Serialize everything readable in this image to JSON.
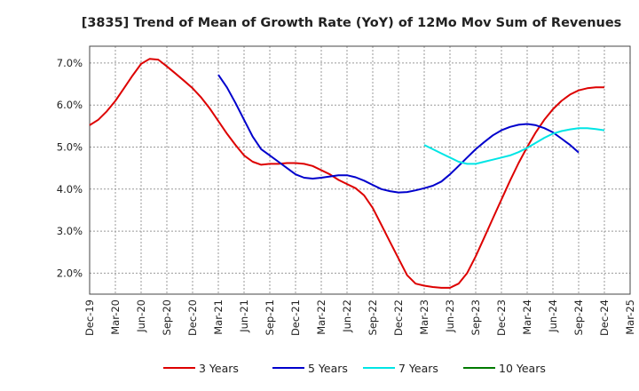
{
  "chart_data": {
    "type": "line",
    "title": "[3835]  Trend of Mean of Growth Rate (YoY) of 12Mo Mov Sum of Revenues",
    "xlabel": "",
    "ylabel": "",
    "ylim": [
      1.5,
      7.4
    ],
    "y_ticks": [
      2.0,
      3.0,
      4.0,
      5.0,
      6.0,
      7.0
    ],
    "y_tick_labels": [
      "2.0%",
      "3.0%",
      "4.0%",
      "5.0%",
      "6.0%",
      "7.0%"
    ],
    "x_start": "Dec-19",
    "x_tick_labels": [
      "Dec-19",
      "Mar-20",
      "Jun-20",
      "Sep-20",
      "Dec-20",
      "Mar-21",
      "Jun-21",
      "Sep-21",
      "Dec-21",
      "Mar-22",
      "Jun-22",
      "Sep-22",
      "Dec-22",
      "Mar-23",
      "Jun-23",
      "Sep-23",
      "Dec-23",
      "Mar-24",
      "Jun-24",
      "Sep-24",
      "Dec-24",
      "Mar-25"
    ],
    "series": [
      {
        "name": "3 Years",
        "color": "#dd0000",
        "start_index": 0,
        "values": [
          5.52,
          5.65,
          5.85,
          6.1,
          6.4,
          6.7,
          6.98,
          7.1,
          7.08,
          6.92,
          6.75,
          6.58,
          6.4,
          6.18,
          5.92,
          5.62,
          5.32,
          5.05,
          4.8,
          4.65,
          4.58,
          4.6,
          4.6,
          4.62,
          4.62,
          4.6,
          4.55,
          4.45,
          4.35,
          4.22,
          4.12,
          4.02,
          3.85,
          3.55,
          3.15,
          2.75,
          2.35,
          1.95,
          1.75,
          1.7,
          1.67,
          1.65,
          1.65,
          1.75,
          2.0,
          2.4,
          2.85,
          3.3,
          3.75,
          4.2,
          4.62,
          5.0,
          5.35,
          5.65,
          5.9,
          6.1,
          6.25,
          6.35,
          6.4,
          6.42,
          6.42
        ]
      },
      {
        "name": "5 Years",
        "color": "#0000cc",
        "start_index": 15,
        "values": [
          6.72,
          6.42,
          6.05,
          5.65,
          5.25,
          4.95,
          4.8,
          4.65,
          4.5,
          4.35,
          4.27,
          4.25,
          4.27,
          4.3,
          4.33,
          4.33,
          4.28,
          4.2,
          4.1,
          4.0,
          3.95,
          3.92,
          3.93,
          3.97,
          4.02,
          4.08,
          4.18,
          4.35,
          4.55,
          4.75,
          4.95,
          5.12,
          5.28,
          5.4,
          5.48,
          5.53,
          5.55,
          5.52,
          5.45,
          5.35,
          5.2,
          5.05,
          4.87
        ]
      },
      {
        "name": "7 Years",
        "color": "#00e5e5",
        "start_index": 39,
        "values": [
          5.05,
          4.95,
          4.85,
          4.75,
          4.65,
          4.6,
          4.6,
          4.65,
          4.7,
          4.75,
          4.8,
          4.88,
          4.98,
          5.1,
          5.22,
          5.32,
          5.38,
          5.42,
          5.45,
          5.45,
          5.43,
          5.4
        ]
      },
      {
        "name": "10 Years",
        "color": "#007a00",
        "start_index": 0,
        "values": []
      }
    ]
  }
}
